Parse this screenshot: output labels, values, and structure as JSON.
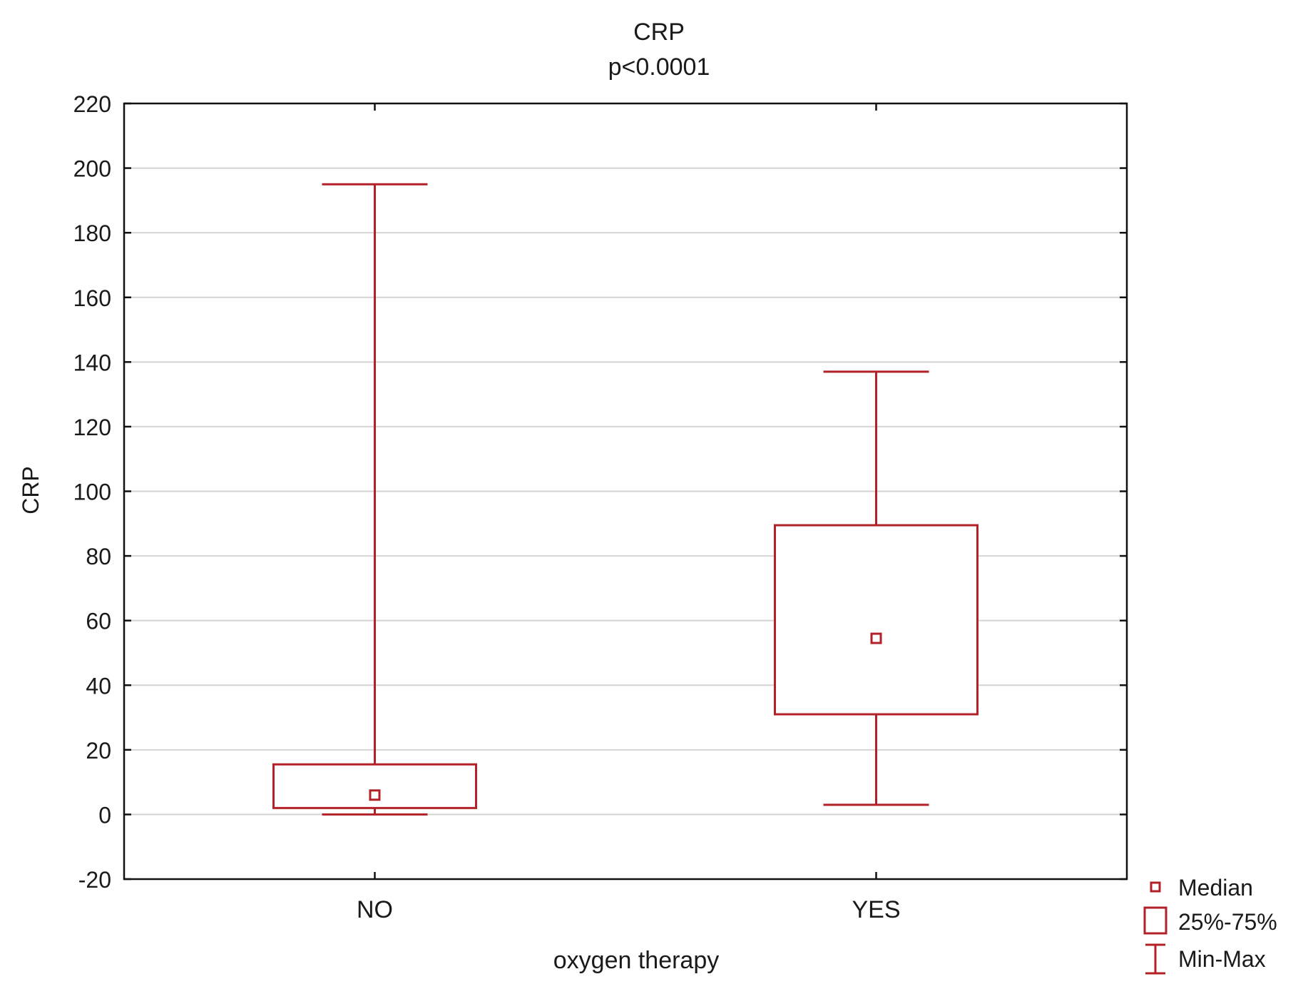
{
  "chart_data": {
    "type": "box",
    "title": "CRP",
    "subtitle": "p<0.0001",
    "xlabel": "oxygen therapy",
    "ylabel": "CRP",
    "ylim": [
      -20,
      220
    ],
    "yticks": [
      -20,
      0,
      20,
      40,
      60,
      80,
      100,
      120,
      140,
      160,
      180,
      200,
      220
    ],
    "grid": true,
    "color": "#b22028",
    "categories": [
      "NO",
      "YES"
    ],
    "series": [
      {
        "category": "NO",
        "min": 0,
        "q1": 2,
        "median": 6,
        "q3": 15.5,
        "max": 195
      },
      {
        "category": "YES",
        "min": 3,
        "q1": 31,
        "median": 54.5,
        "q3": 89.5,
        "max": 137
      }
    ],
    "legend": {
      "placement": "bottom-right",
      "entries": [
        {
          "key": "median",
          "label": "Median"
        },
        {
          "key": "box",
          "label": "25%-75%"
        },
        {
          "key": "whisker",
          "label": "Min-Max"
        }
      ]
    }
  }
}
